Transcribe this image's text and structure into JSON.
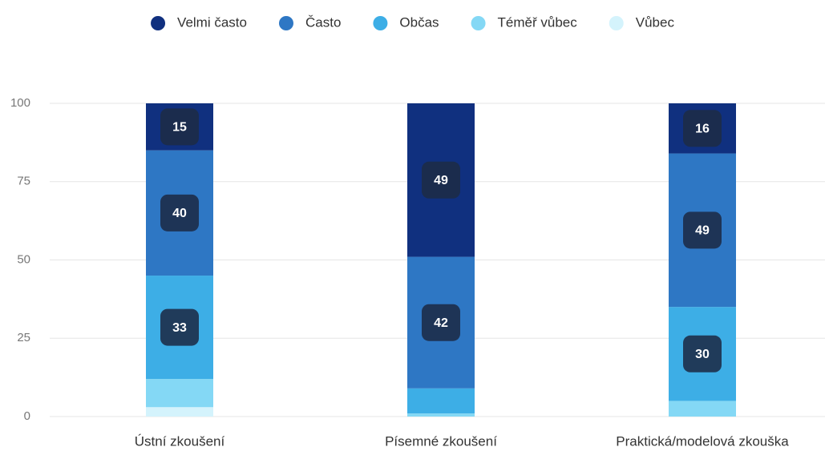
{
  "chart_data": {
    "type": "stacked_bar",
    "categories": [
      "Ústní zkoušení",
      "Písemné zkoušení",
      "Praktická/modelová zkouška"
    ],
    "series": [
      {
        "name": "Vůbec",
        "color": "#d4f3fc",
        "values": [
          3,
          0,
          0
        ],
        "value_labels": [
          null,
          null,
          null
        ]
      },
      {
        "name": "Téměř vůbec",
        "color": "#84d8f5",
        "values": [
          9,
          1,
          5
        ],
        "value_labels": [
          null,
          null,
          null
        ]
      },
      {
        "name": "Občas",
        "color": "#3daee6",
        "values": [
          33,
          8,
          30
        ],
        "value_labels": [
          "33",
          null,
          "30"
        ]
      },
      {
        "name": "Často",
        "color": "#2e77c4",
        "values": [
          40,
          42,
          49
        ],
        "value_labels": [
          "40",
          "42",
          "49"
        ]
      },
      {
        "name": "Velmi často",
        "color": "#10307f",
        "values": [
          15,
          49,
          16
        ],
        "value_labels": [
          "15",
          "49",
          "16"
        ]
      }
    ],
    "ylim": [
      0,
      100
    ],
    "yticks": [
      0,
      25,
      50,
      75,
      100
    ],
    "grid": true
  }
}
